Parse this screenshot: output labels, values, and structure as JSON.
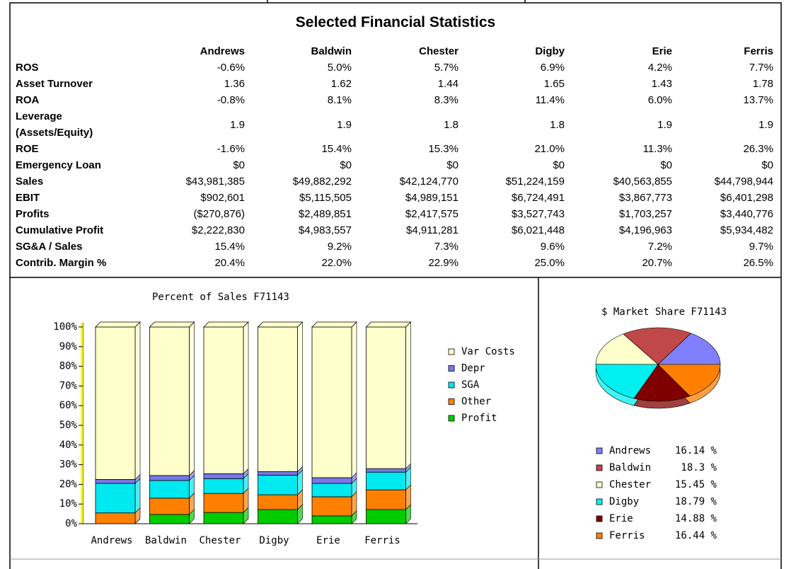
{
  "title": "Selected Financial Statistics",
  "table": {
    "columns": [
      "Andrews",
      "Baldwin",
      "Chester",
      "Digby",
      "Erie",
      "Ferris"
    ],
    "rows": [
      {
        "label": "ROS",
        "values": [
          "-0.6%",
          "5.0%",
          "5.7%",
          "6.9%",
          "4.2%",
          "7.7%"
        ]
      },
      {
        "label": "Asset Turnover",
        "values": [
          "1.36",
          "1.62",
          "1.44",
          "1.65",
          "1.43",
          "1.78"
        ]
      },
      {
        "label": "ROA",
        "values": [
          "-0.8%",
          "8.1%",
          "8.3%",
          "11.4%",
          "6.0%",
          "13.7%"
        ]
      },
      {
        "label": "Leverage (Assets/Equity)",
        "values": [
          "1.9",
          "1.9",
          "1.8",
          "1.8",
          "1.9",
          "1.9"
        ]
      },
      {
        "label": "ROE",
        "values": [
          "-1.6%",
          "15.4%",
          "15.3%",
          "21.0%",
          "11.3%",
          "26.3%"
        ]
      },
      {
        "label": "Emergency Loan",
        "values": [
          "$0",
          "$0",
          "$0",
          "$0",
          "$0",
          "$0"
        ]
      },
      {
        "label": "Sales",
        "values": [
          "$43,981,385",
          "$49,882,292",
          "$42,124,770",
          "$51,224,159",
          "$40,563,855",
          "$44,798,944"
        ]
      },
      {
        "label": "EBIT",
        "values": [
          "$902,601",
          "$5,115,505",
          "$4,989,151",
          "$6,724,491",
          "$3,867,773",
          "$6,401,298"
        ]
      },
      {
        "label": "Profits",
        "values": [
          "($270,876)",
          "$2,489,851",
          "$2,417,575",
          "$3,527,743",
          "$1,703,257",
          "$3,440,776"
        ]
      },
      {
        "label": "Cumulative Profit",
        "values": [
          "$2,222,830",
          "$4,983,557",
          "$4,911,281",
          "$6,021,448",
          "$4,196,963",
          "$5,934,482"
        ]
      },
      {
        "label": "SG&A / Sales",
        "values": [
          "15.4%",
          "9.2%",
          "7.3%",
          "9.6%",
          "7.2%",
          "9.7%"
        ]
      },
      {
        "label": "Contrib. Margin %",
        "values": [
          "20.4%",
          "22.0%",
          "22.9%",
          "25.0%",
          "20.7%",
          "26.5%"
        ]
      }
    ]
  },
  "chart_data": [
    {
      "type": "stacked_bar",
      "title": "Percent of Sales F71143",
      "categories": [
        "Andrews",
        "Baldwin",
        "Chester",
        "Digby",
        "Erie",
        "Ferris"
      ],
      "series": [
        {
          "name": "Var Costs",
          "color": "#ffffcc",
          "values": [
            77.5,
            75.5,
            74.6,
            73.5,
            76.6,
            72
          ]
        },
        {
          "name": "Depr",
          "color": "#7878e8",
          "values": [
            2,
            2.5,
            2.5,
            1.8,
            2.9,
            1.8
          ]
        },
        {
          "name": "SGA",
          "color": "#00e8f0",
          "values": [
            15,
            9,
            7.5,
            10,
            6.8,
            9
          ]
        },
        {
          "name": "Other",
          "color": "#ff8000",
          "values": [
            5.5,
            8.3,
            9.7,
            7.5,
            9.7,
            10
          ]
        },
        {
          "name": "Profit",
          "color": "#00cc00",
          "values": [
            0,
            4.7,
            5.7,
            7.2,
            4,
            7.2
          ]
        }
      ],
      "ylim": [
        0,
        100
      ],
      "yticks": [
        {
          "value": 0,
          "label": "0%"
        },
        {
          "value": 10,
          "label": "10%"
        },
        {
          "value": 20,
          "label": "20%"
        },
        {
          "value": 30,
          "label": "30%"
        },
        {
          "value": 40,
          "label": "40%"
        },
        {
          "value": 50,
          "label": "50%"
        },
        {
          "value": 60,
          "label": "60%"
        },
        {
          "value": 70,
          "label": "70%"
        },
        {
          "value": 80,
          "label": "80%"
        },
        {
          "value": 90,
          "label": "90%"
        },
        {
          "value": 100,
          "label": "100%"
        }
      ]
    },
    {
      "type": "pie",
      "title": "$ Market Share F71143",
      "categories": [
        "Andrews",
        "Baldwin",
        "Chester",
        "Digby",
        "Erie",
        "Ferris"
      ],
      "values": [
        16.14,
        18.3,
        15.45,
        18.79,
        14.88,
        16.44
      ],
      "value_labels": [
        "16.14 %",
        "18.3 %",
        "15.45 %",
        "18.79 %",
        "14.88 %",
        "16.44 %"
      ],
      "colors": [
        "#8080ff",
        "#c04848",
        "#ffffcc",
        "#00f0f0",
        "#800000",
        "#ff8000"
      ]
    }
  ]
}
